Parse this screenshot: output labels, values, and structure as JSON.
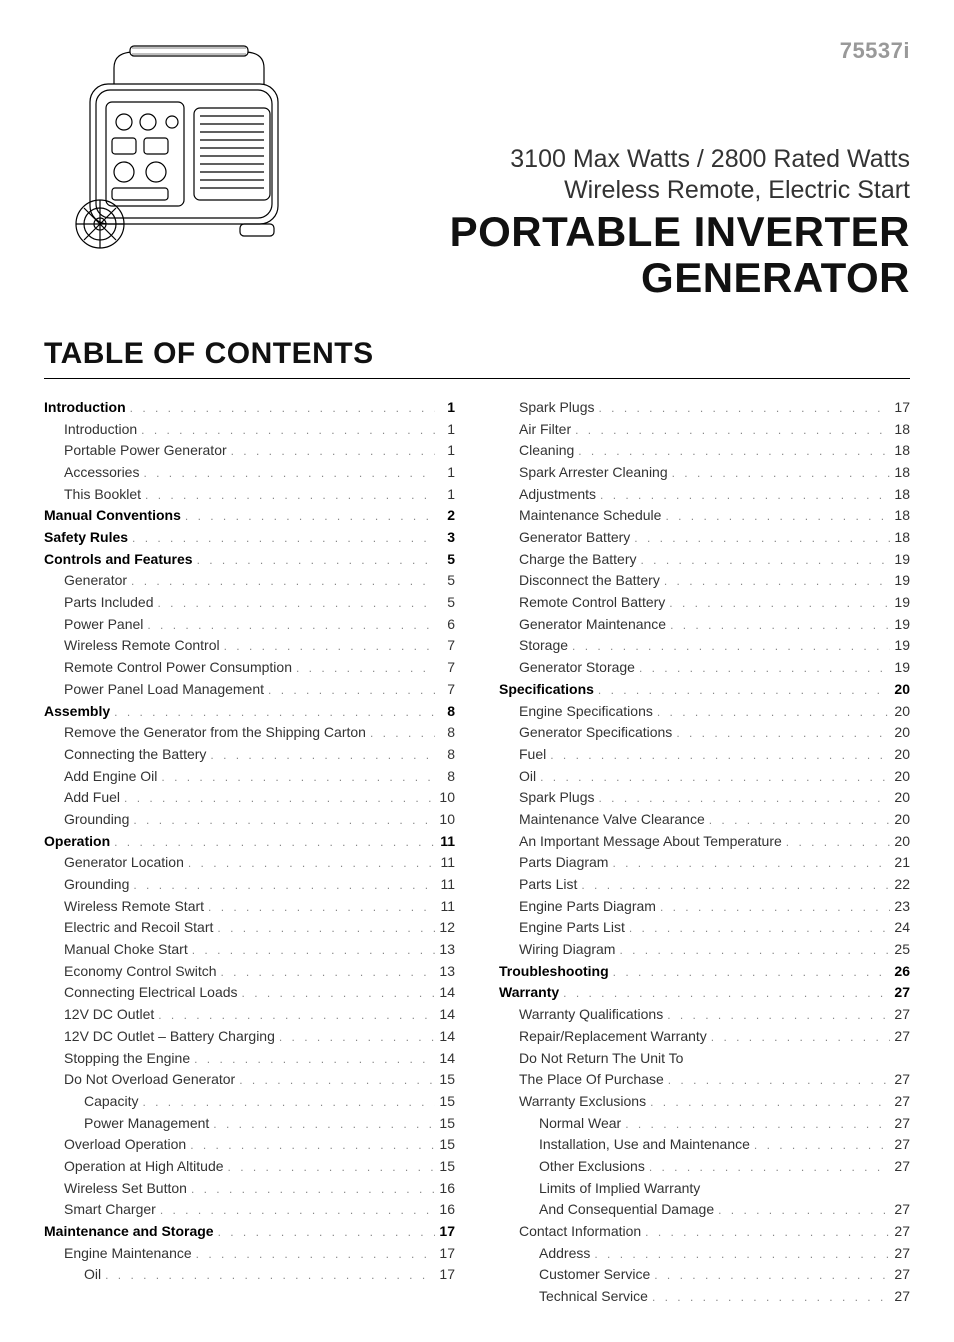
{
  "model_number": "75537i",
  "header": {
    "subtitle1": "3100 Max Watts / 2800 Rated Watts",
    "subtitle2": "Wireless Remote, Electric Start",
    "title": "PORTABLE INVERTER GENERATOR"
  },
  "toc_heading": "TABLE OF CONTENTS",
  "toc_left": [
    {
      "label": "Introduction",
      "page": "1",
      "level": 0,
      "bold": true
    },
    {
      "label": "Introduction",
      "page": "1",
      "level": 1
    },
    {
      "label": "Portable Power Generator",
      "page": "1",
      "level": 1
    },
    {
      "label": "Accessories",
      "page": "1",
      "level": 1
    },
    {
      "label": "This Booklet",
      "page": "1",
      "level": 1
    },
    {
      "label": "Manual Conventions",
      "page": "2",
      "level": 0,
      "bold": true
    },
    {
      "label": "Safety Rules",
      "page": "3",
      "level": 0,
      "bold": true
    },
    {
      "label": "Controls and Features",
      "page": "5",
      "level": 0,
      "bold": true
    },
    {
      "label": "Generator",
      "page": "5",
      "level": 1
    },
    {
      "label": "Parts Included",
      "page": "5",
      "level": 1
    },
    {
      "label": "Power Panel",
      "page": "6",
      "level": 1
    },
    {
      "label": "Wireless Remote Control",
      "page": "7",
      "level": 1
    },
    {
      "label": "Remote Control Power Consumption",
      "page": "7",
      "level": 1
    },
    {
      "label": "Power Panel Load Management",
      "page": "7",
      "level": 1
    },
    {
      "label": "Assembly",
      "page": "8",
      "level": 0,
      "bold": true
    },
    {
      "label": "Remove the Generator from the Shipping Carton",
      "page": "8",
      "level": 1
    },
    {
      "label": "Connecting the Battery",
      "page": "8",
      "level": 1
    },
    {
      "label": "Add Engine Oil",
      "page": "8",
      "level": 1
    },
    {
      "label": "Add Fuel",
      "page": "10",
      "level": 1
    },
    {
      "label": "Grounding",
      "page": "10",
      "level": 1
    },
    {
      "label": "Operation",
      "page": "11",
      "level": 0,
      "bold": true
    },
    {
      "label": "Generator Location",
      "page": "11",
      "level": 1
    },
    {
      "label": "Grounding",
      "page": "11",
      "level": 1
    },
    {
      "label": "Wireless Remote Start",
      "page": "11",
      "level": 1
    },
    {
      "label": "Electric and Recoil Start",
      "page": "12",
      "level": 1
    },
    {
      "label": "Manual Choke Start",
      "page": "13",
      "level": 1
    },
    {
      "label": "Economy Control Switch",
      "page": "13",
      "level": 1
    },
    {
      "label": "Connecting Electrical Loads",
      "page": "14",
      "level": 1
    },
    {
      "label": "12V DC Outlet",
      "page": "14",
      "level": 1
    },
    {
      "label": "12V DC Outlet – Battery Charging",
      "page": "14",
      "level": 1
    },
    {
      "label": "Stopping the Engine",
      "page": "14",
      "level": 1
    },
    {
      "label": "Do Not Overload Generator",
      "page": "15",
      "level": 1
    },
    {
      "label": "Capacity",
      "page": "15",
      "level": 2
    },
    {
      "label": "Power Management",
      "page": "15",
      "level": 2
    },
    {
      "label": "Overload Operation",
      "page": "15",
      "level": 1
    },
    {
      "label": "Operation at High Altitude",
      "page": "15",
      "level": 1
    },
    {
      "label": "Wireless Set Button",
      "page": "16",
      "level": 1
    },
    {
      "label": "Smart Charger",
      "page": "16",
      "level": 1
    },
    {
      "label": "Maintenance and Storage",
      "page": "17",
      "level": 0,
      "bold": true
    },
    {
      "label": "Engine Maintenance",
      "page": "17",
      "level": 1
    },
    {
      "label": "Oil",
      "page": "17",
      "level": 2
    }
  ],
  "toc_right": [
    {
      "label": "Spark Plugs",
      "page": "17",
      "level": 1
    },
    {
      "label": "Air Filter",
      "page": "18",
      "level": 1
    },
    {
      "label": "Cleaning",
      "page": "18",
      "level": 1
    },
    {
      "label": "Spark Arrester Cleaning",
      "page": "18",
      "level": 1
    },
    {
      "label": "Adjustments",
      "page": "18",
      "level": 1
    },
    {
      "label": "Maintenance Schedule",
      "page": "18",
      "level": 1
    },
    {
      "label": "Generator Battery",
      "page": "18",
      "level": 1
    },
    {
      "label": "Charge the Battery",
      "page": "19",
      "level": 1
    },
    {
      "label": "Disconnect the Battery",
      "page": "19",
      "level": 1
    },
    {
      "label": "Remote Control Battery",
      "page": "19",
      "level": 1
    },
    {
      "label": "Generator Maintenance",
      "page": "19",
      "level": 1
    },
    {
      "label": "Storage",
      "page": "19",
      "level": 1
    },
    {
      "label": "Generator Storage",
      "page": "19",
      "level": 1
    },
    {
      "label": "Specifications",
      "page": "20",
      "level": 0,
      "bold": true
    },
    {
      "label": "Engine Specifications",
      "page": "20",
      "level": 1
    },
    {
      "label": "Generator Specifications",
      "page": "20",
      "level": 1
    },
    {
      "label": "Fuel",
      "page": "20",
      "level": 1
    },
    {
      "label": "Oil",
      "page": "20",
      "level": 1
    },
    {
      "label": "Spark Plugs",
      "page": "20",
      "level": 1
    },
    {
      "label": "Maintenance Valve Clearance",
      "page": "20",
      "level": 1
    },
    {
      "label": "An Important Message About Temperature",
      "page": "20",
      "level": 1
    },
    {
      "label": "Parts Diagram",
      "page": "21",
      "level": 1
    },
    {
      "label": "Parts List",
      "page": "22",
      "level": 1
    },
    {
      "label": "Engine Parts Diagram",
      "page": "23",
      "level": 1
    },
    {
      "label": "Engine Parts List",
      "page": "24",
      "level": 1
    },
    {
      "label": "Wiring Diagram",
      "page": "25",
      "level": 1
    },
    {
      "label": "Troubleshooting",
      "page": "26",
      "level": 0,
      "bold": true
    },
    {
      "label": "Warranty",
      "page": "27",
      "level": 0,
      "bold": true
    },
    {
      "label": "Warranty Qualifications",
      "page": "27",
      "level": 1
    },
    {
      "label": "Repair/Replacement Warranty",
      "page": "27",
      "level": 1
    },
    {
      "label": "Do Not Return The Unit To",
      "continuation": "The Place Of Purchase",
      "page": "27",
      "level": 1
    },
    {
      "label": "Warranty Exclusions",
      "page": "27",
      "level": 1
    },
    {
      "label": "Normal Wear",
      "page": "27",
      "level": 2
    },
    {
      "label": "Installation, Use and Maintenance",
      "page": "27",
      "level": 2
    },
    {
      "label": "Other Exclusions",
      "page": "27",
      "level": 2
    },
    {
      "label": "Limits of Implied Warranty",
      "continuation": "And Consequential Damage",
      "page": "27",
      "level": 2
    },
    {
      "label": "Contact Information",
      "page": "27",
      "level": 1
    },
    {
      "label": "Address",
      "page": "27",
      "level": 2
    },
    {
      "label": "Customer Service",
      "page": "27",
      "level": 2
    },
    {
      "label": "Technical Service",
      "page": "27",
      "level": 2
    }
  ]
}
